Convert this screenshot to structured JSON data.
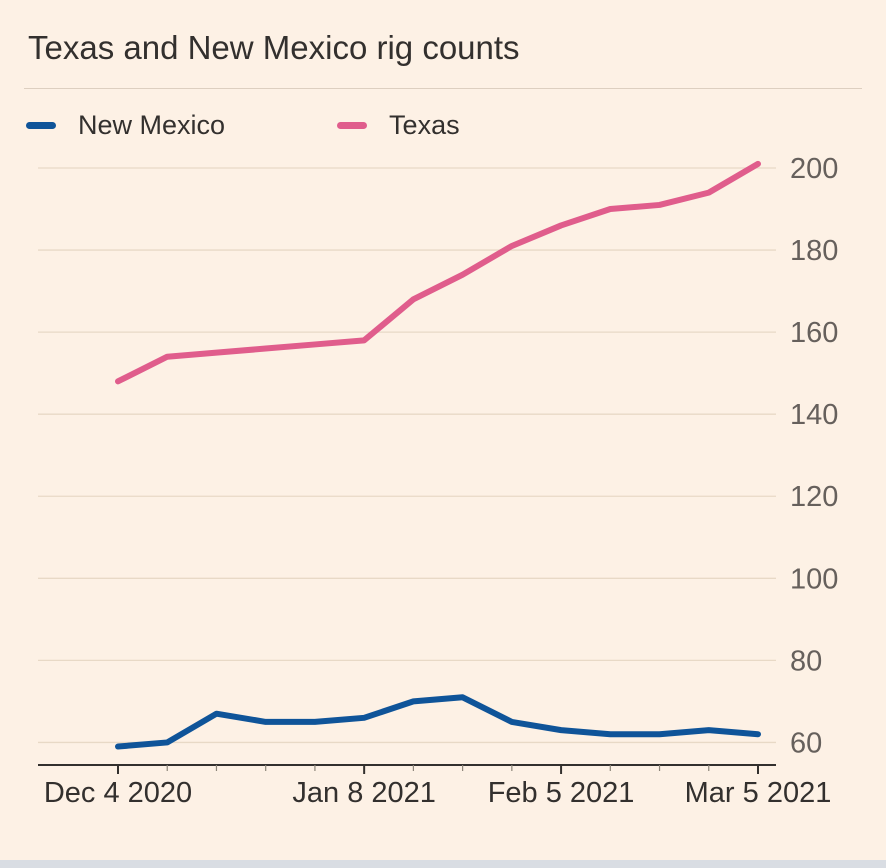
{
  "title": "Texas and New Mexico rig counts",
  "legend": {
    "items": [
      {
        "label": "New Mexico",
        "color": "#0f5499"
      },
      {
        "label": "Texas",
        "color": "#e05d8c"
      }
    ]
  },
  "theme": {
    "background": "#fdf1e5",
    "title": "#33302e",
    "divider": "#ddcfc0",
    "grid": "#e8d9c6",
    "axis": "#33302e",
    "tick": "#8c8579",
    "axis_label": "#66605c",
    "x_label": "#33302e",
    "footer_strip": "#d9dde3"
  },
  "chart_data": {
    "type": "line",
    "title": "Texas and New Mexico rig counts",
    "x": [
      "Dec 4 2020",
      "Dec 11 2020",
      "Dec 18 2020",
      "Dec 25 2020",
      "Jan 1 2021",
      "Jan 8 2021",
      "Jan 15 2021",
      "Jan 22 2021",
      "Jan 29 2021",
      "Feb 5 2021",
      "Feb 12 2021",
      "Feb 19 2021",
      "Feb 26 2021",
      "Mar 5 2021"
    ],
    "series": [
      {
        "name": "New Mexico",
        "color": "#0f5499",
        "values": [
          59,
          60,
          67,
          65,
          65,
          66,
          70,
          71,
          65,
          63,
          62,
          62,
          63,
          62
        ]
      },
      {
        "name": "Texas",
        "color": "#e05d8c",
        "values": [
          148,
          154,
          155,
          156,
          157,
          158,
          168,
          174,
          181,
          186,
          190,
          191,
          194,
          201
        ]
      }
    ],
    "x_tick_labels": [
      "Dec 4 2020",
      "Jan 8 2021",
      "Feb 5 2021",
      "Mar 5 2021"
    ],
    "x_tick_indices": [
      0,
      5,
      9,
      13
    ],
    "y_ticks": [
      60,
      80,
      100,
      120,
      140,
      160,
      180,
      200
    ],
    "ylim": [
      54.5,
      200
    ],
    "grid": true,
    "legend_position": "top-left",
    "xlabel": "",
    "ylabel": ""
  }
}
